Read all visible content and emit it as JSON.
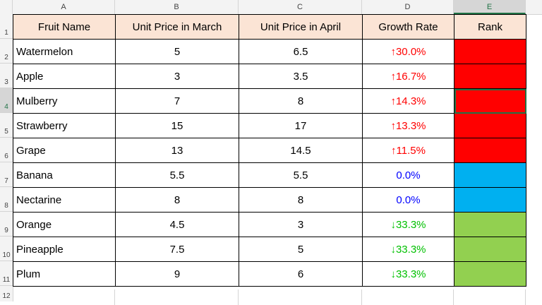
{
  "columns": [
    "A",
    "B",
    "C",
    "D",
    "E"
  ],
  "rows": [
    "1",
    "2",
    "3",
    "4",
    "5",
    "6",
    "7",
    "8",
    "9",
    "10",
    "11",
    "12"
  ],
  "header": {
    "fruit": "Fruit Name",
    "march": "Unit Price in March",
    "april": "Unit Price in April",
    "growth": "Growth Rate",
    "rank": "Rank"
  },
  "data": [
    {
      "fruit": "Watermelon",
      "march": "5",
      "april": "6.5",
      "growth": "↑30.0%",
      "trend": "up",
      "rank_color": "#ff0000"
    },
    {
      "fruit": "Apple",
      "march": "3",
      "april": "3.5",
      "growth": "↑16.7%",
      "trend": "up",
      "rank_color": "#ff0000"
    },
    {
      "fruit": "Mulberry",
      "march": "7",
      "april": "8",
      "growth": "↑14.3%",
      "trend": "up",
      "rank_color": "#ff0000"
    },
    {
      "fruit": "Strawberry",
      "march": "15",
      "april": "17",
      "growth": "↑13.3%",
      "trend": "up",
      "rank_color": "#ff0000"
    },
    {
      "fruit": "Grape",
      "march": "13",
      "april": "14.5",
      "growth": "↑11.5%",
      "trend": "up",
      "rank_color": "#ff0000"
    },
    {
      "fruit": "Banana",
      "march": "5.5",
      "april": "5.5",
      "growth": "0.0%",
      "trend": "flat",
      "rank_color": "#00b0f0"
    },
    {
      "fruit": "Nectarine",
      "march": "8",
      "april": "8",
      "growth": "0.0%",
      "trend": "flat",
      "rank_color": "#00b0f0"
    },
    {
      "fruit": "Orange",
      "march": "4.5",
      "april": "3",
      "growth": "↓33.3%",
      "trend": "down",
      "rank_color": "#92d050"
    },
    {
      "fruit": "Pineapple",
      "march": "7.5",
      "april": "5",
      "growth": "↓33.3%",
      "trend": "down",
      "rank_color": "#92d050"
    },
    {
      "fruit": "Plum",
      "march": "9",
      "april": "6",
      "growth": "↓33.3%",
      "trend": "down",
      "rank_color": "#92d050"
    }
  ],
  "selection": {
    "column": "E",
    "row": "4"
  },
  "colors": {
    "header_fill": "#fbe4d5",
    "up": "#ff0000",
    "flat": "#0000ff",
    "down": "#00c000",
    "excel_green": "#217346"
  }
}
